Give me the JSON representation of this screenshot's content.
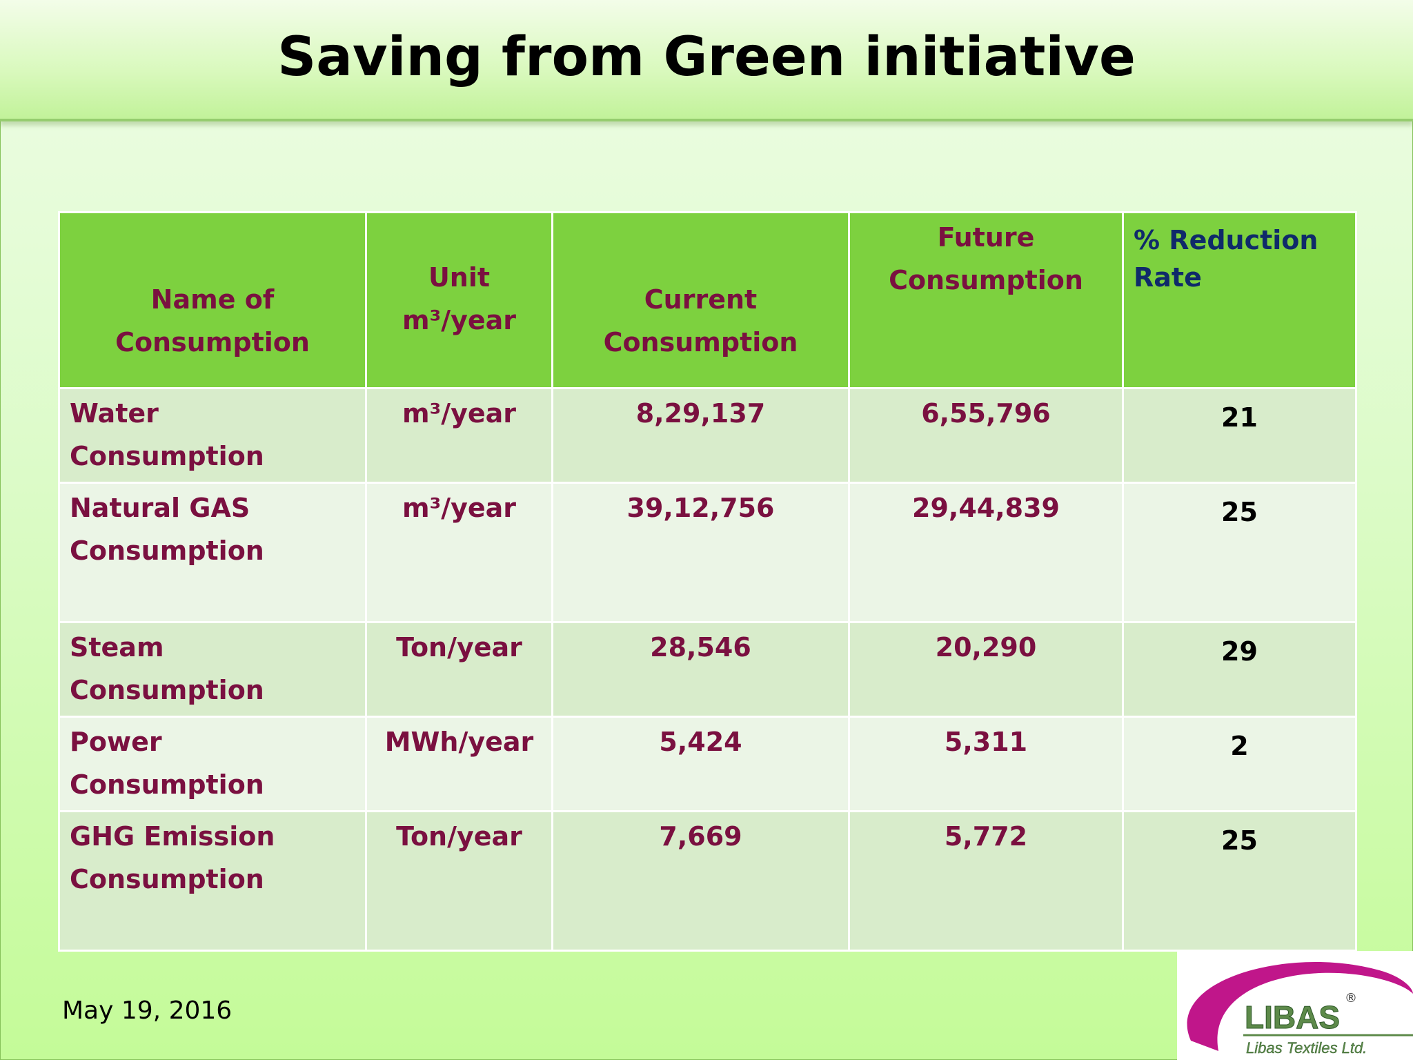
{
  "title": "Saving from Green initiative",
  "table": {
    "headers": {
      "name": "Name of Consumption",
      "unit": "Unit m³/year",
      "current": "Current Consumption",
      "future": "Future Consumption",
      "rate": "% Reduction Rate"
    },
    "rows": [
      {
        "name": "Water Consumption",
        "unit": "m³/year",
        "current": "8,29,137",
        "future": "6,55,796",
        "rate": "21"
      },
      {
        "name": "Natural GAS Consumption",
        "unit": "m³/year",
        "current": "39,12,756",
        "future": "29,44,839",
        "rate": "25"
      },
      {
        "name": "Steam Consumption",
        "unit": "Ton/year",
        "current": "28,546",
        "future": "20,290",
        "rate": "29"
      },
      {
        "name": "Power Consumption",
        "unit": "MWh/year",
        "current": "5,424",
        "future": "5,311",
        "rate": "2"
      },
      {
        "name": "GHG Emission Consumption",
        "unit": "Ton/year",
        "current": "7,669",
        "future": "5,772",
        "rate": "25"
      }
    ]
  },
  "footer": {
    "date": "May 19, 2016"
  },
  "logo": {
    "name": "LIBAS",
    "tagline": "Libas Textiles Ltd.",
    "registered": "®",
    "colors": {
      "swoosh": "#c0168a",
      "text": "#5d8a4a"
    }
  }
}
